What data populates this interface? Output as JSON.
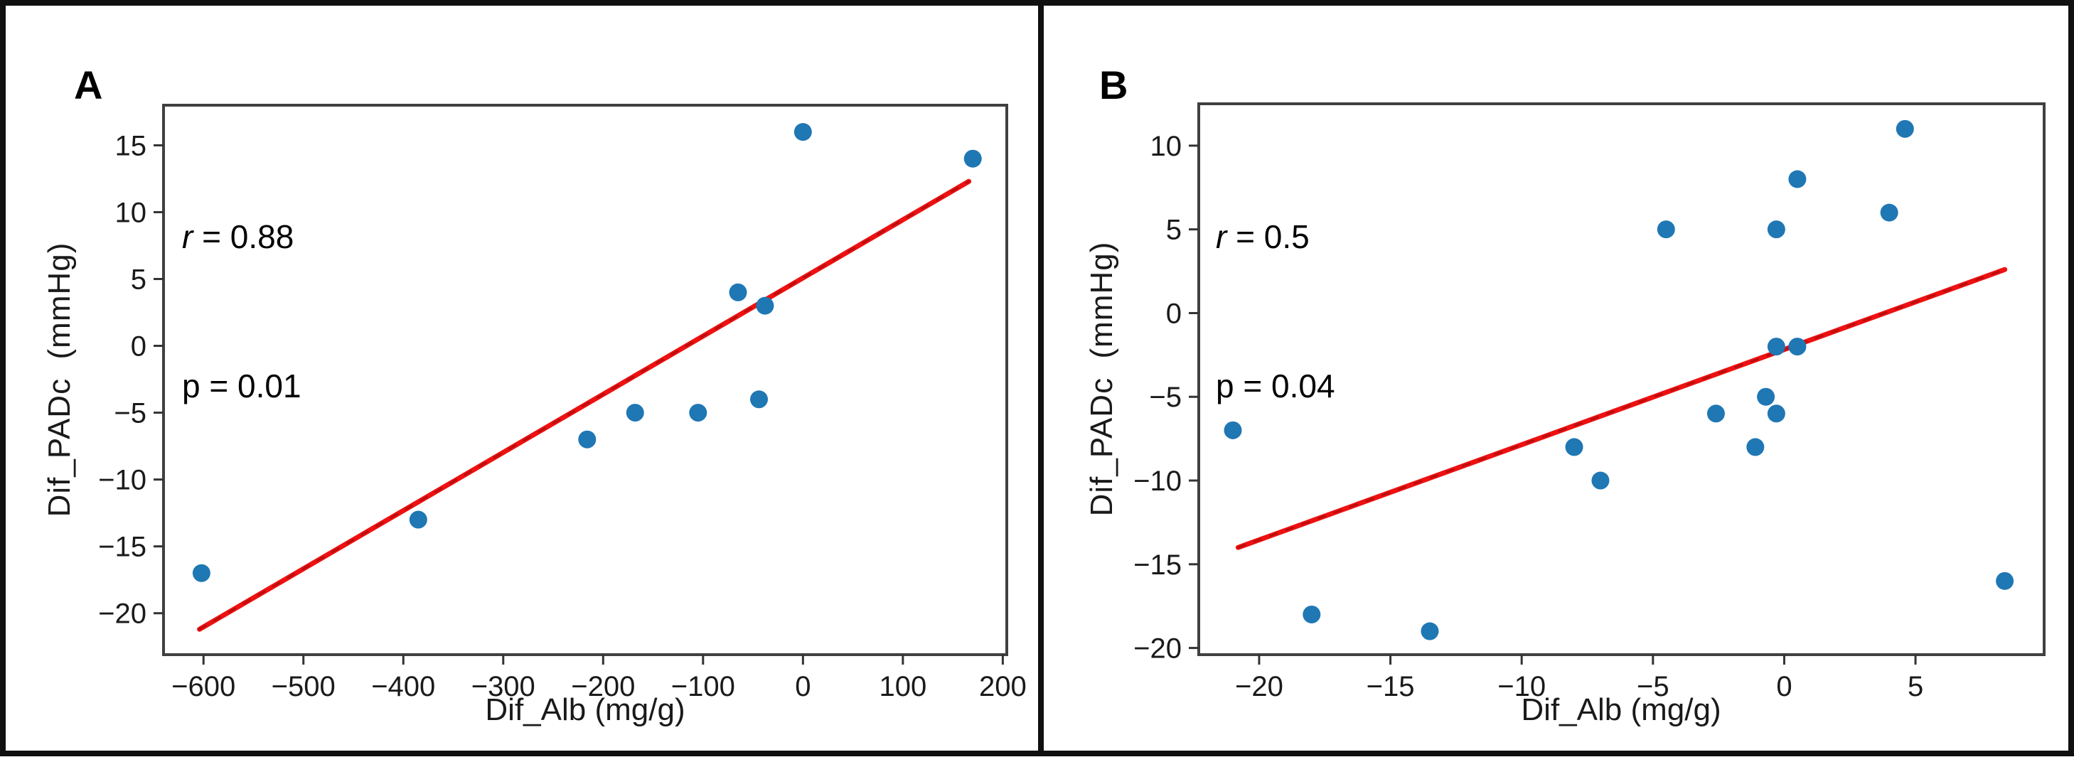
{
  "figure": {
    "panels": [
      {
        "letter": "A",
        "r_symbol": "r",
        "r_rest": " = 0.88",
        "p_text": "p = 0.01",
        "xlabel": "Dif_Alb (mg/g)",
        "ylabel": "Dif_PADc  (mmHg)"
      },
      {
        "letter": "B",
        "r_symbol": "r",
        "r_rest": " = 0.5",
        "p_text": "p = 0.04",
        "xlabel": "Dif_Alb (mg/g)",
        "ylabel": "Dif_PADc  (mmHg)"
      }
    ],
    "colors": {
      "marker": "#1f77b4",
      "trend_line": "#ee1111",
      "trend_line_dash": "#7a0a0a",
      "spine": "#404040",
      "tick": "#333333",
      "tick_label": "#1a1a1a",
      "border": "#101010"
    }
  },
  "chart_data": [
    {
      "type": "scatter",
      "panel": "A",
      "title": "A",
      "xlabel": "Dif_Alb (mg/g)",
      "ylabel": "Dif_PADc (mmHg)",
      "annotation": [
        "r = 0.88",
        "p = 0.01"
      ],
      "r": 0.88,
      "p": 0.01,
      "xlim": [
        -640,
        204
      ],
      "ylim": [
        -23.1,
        18.0
      ],
      "x_ticks": [
        -600,
        -500,
        -400,
        -300,
        -200,
        -100,
        0,
        100,
        200
      ],
      "y_ticks": [
        15,
        10,
        5,
        0,
        -5,
        -10,
        -15,
        -20
      ],
      "grid": false,
      "legend": "none",
      "points": [
        [
          -602,
          -17
        ],
        [
          -385,
          -13
        ],
        [
          -216,
          -7
        ],
        [
          -168,
          -5
        ],
        [
          -105,
          -5
        ],
        [
          -65,
          4
        ],
        [
          -44,
          -4
        ],
        [
          -38,
          3
        ],
        [
          0,
          16
        ],
        [
          170,
          14
        ]
      ],
      "trend_line": {
        "x1": -604,
        "y1": -21.2,
        "x2": 166,
        "y2": 12.3
      }
    },
    {
      "type": "scatter",
      "panel": "B",
      "title": "B",
      "xlabel": "Dif_Alb (mg/g)",
      "ylabel": "Dif_PADc (mmHg)",
      "annotation": [
        "r = 0.5",
        "p = 0.04"
      ],
      "r": 0.5,
      "p": 0.04,
      "xlim": [
        -22.3,
        9.9
      ],
      "ylim": [
        -20.4,
        12.5
      ],
      "x_ticks": [
        -20,
        -15,
        -10,
        -5,
        0,
        5
      ],
      "y_ticks": [
        10,
        5,
        0,
        -5,
        -10,
        -15,
        -20
      ],
      "grid": false,
      "legend": "none",
      "points": [
        [
          -21,
          -7
        ],
        [
          -18,
          -18
        ],
        [
          -13.5,
          -19
        ],
        [
          -8,
          -8
        ],
        [
          -7,
          -10
        ],
        [
          -4.5,
          5
        ],
        [
          -2.6,
          -6
        ],
        [
          -1.1,
          -8
        ],
        [
          -0.7,
          -5
        ],
        [
          -0.3,
          5
        ],
        [
          -0.3,
          -2
        ],
        [
          0.5,
          -2
        ],
        [
          -0.3,
          -6
        ],
        [
          0.5,
          8
        ],
        [
          4,
          6
        ],
        [
          4.6,
          11
        ],
        [
          8.4,
          -16
        ]
      ],
      "trend_line": {
        "x1": -20.8,
        "y1": -14.0,
        "x2": 8.4,
        "y2": 2.6
      }
    }
  ]
}
